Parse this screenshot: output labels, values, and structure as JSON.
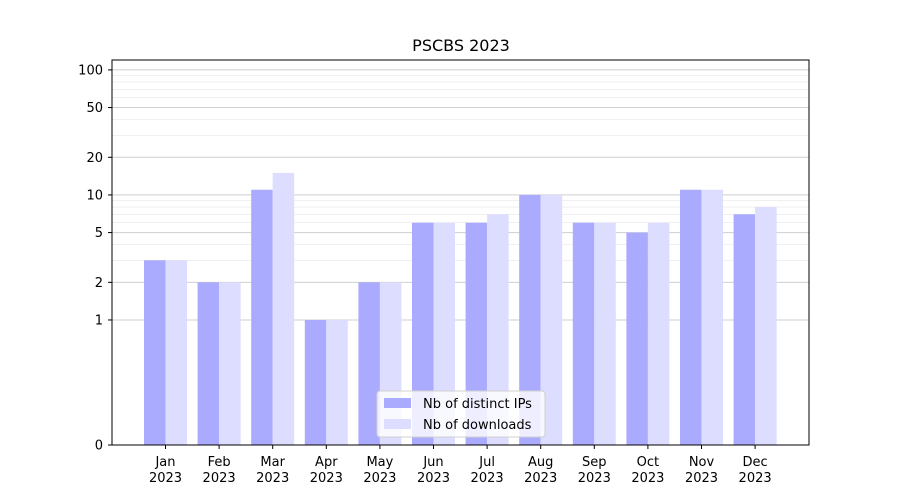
{
  "chart_data": {
    "type": "bar",
    "title": "PSCBS 2023",
    "xlabel": "",
    "ylabel": "",
    "yscale": "symlog",
    "ylim": [
      0,
      120
    ],
    "yticks": [
      0,
      1,
      2,
      5,
      10,
      20,
      50,
      100
    ],
    "ytick_labels": [
      "0",
      "1",
      "2",
      "5",
      "10",
      "20",
      "50",
      "100"
    ],
    "categories": [
      {
        "month": "Jan",
        "year": "2023"
      },
      {
        "month": "Feb",
        "year": "2023"
      },
      {
        "month": "Mar",
        "year": "2023"
      },
      {
        "month": "Apr",
        "year": "2023"
      },
      {
        "month": "May",
        "year": "2023"
      },
      {
        "month": "Jun",
        "year": "2023"
      },
      {
        "month": "Jul",
        "year": "2023"
      },
      {
        "month": "Aug",
        "year": "2023"
      },
      {
        "month": "Sep",
        "year": "2023"
      },
      {
        "month": "Oct",
        "year": "2023"
      },
      {
        "month": "Nov",
        "year": "2023"
      },
      {
        "month": "Dec",
        "year": "2023"
      }
    ],
    "series": [
      {
        "name": "Nb of distinct IPs",
        "color": "#aaaaff",
        "values": [
          3,
          2,
          11,
          1,
          2,
          6,
          6,
          10,
          6,
          5,
          11,
          7
        ]
      },
      {
        "name": "Nb of downloads",
        "color": "#ddddff",
        "values": [
          3,
          2,
          15,
          1,
          2,
          6,
          7,
          10,
          6,
          6,
          11,
          8
        ]
      }
    ],
    "grid": true,
    "legend_position": "bottom-center"
  }
}
